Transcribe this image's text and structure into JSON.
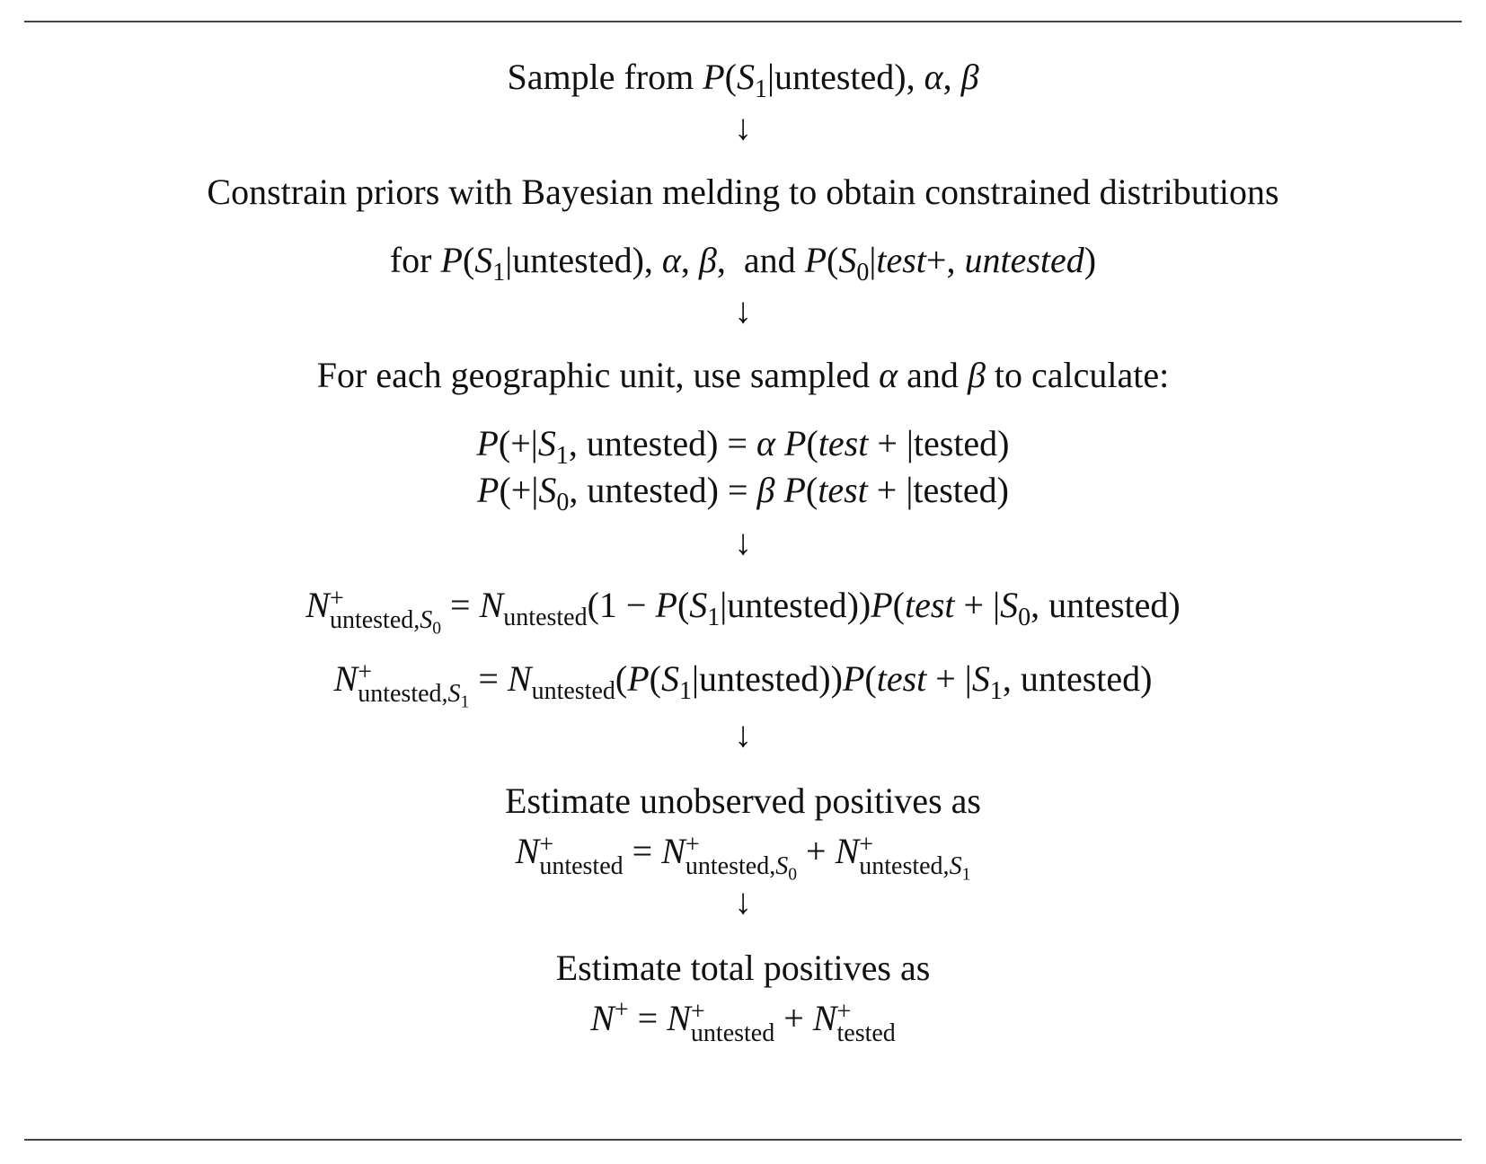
{
  "steps": {
    "step1": "Sample from P(S₁|untested), α, β",
    "step2_line1": "Constrain priors with Bayesian melding to obtain constrained distributions",
    "step2_line2": "for P(S₁|untested), α, β,  and P(S₀|test+, untested)",
    "step3_intro": "For each geographic unit, use sampled α and β to calculate:",
    "step3_eq1": "P(+|S₁, untested) = α P(test + |tested)",
    "step3_eq2": "P(+|S₀, untested) = β P(test + |tested)",
    "step4_eq1": "N⁺ untested,S₀ = N untested (1 − P(S₁|untested))P(test + |S₀, untested)",
    "step4_eq2": "N⁺ untested,S₁ = N untested (P(S₁|untested))P(test + |S₁, untested)",
    "step5_intro": "Estimate unobserved positives as",
    "step5_eq": "N⁺ untested = N⁺ untested,S₀ + N⁺ untested,S₁",
    "step6_intro": "Estimate total positives as",
    "step6_eq": "N⁺ = N⁺ untested + N⁺ tested"
  },
  "arrow_symbol": "↓"
}
